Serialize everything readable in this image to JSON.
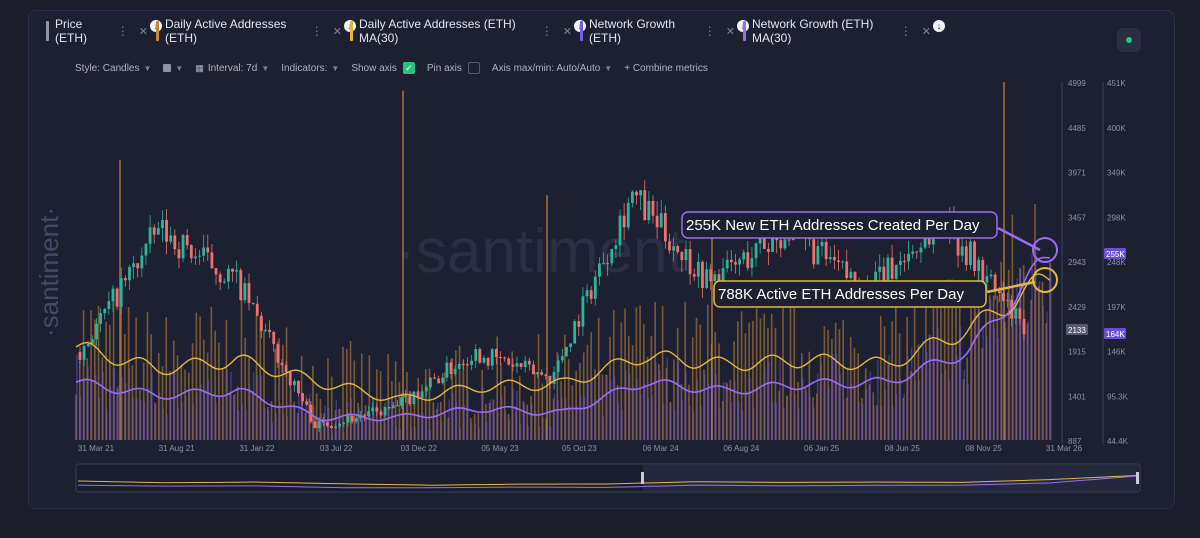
{
  "tabs": [
    {
      "label": "Price (ETH)",
      "color": "#8f93a6"
    },
    {
      "label": "Daily Active Addresses (ETH)",
      "color": "#c7873a"
    },
    {
      "label": "Daily Active Addresses (ETH) MA(30)",
      "color": "#e0b93a"
    },
    {
      "label": "Network Growth (ETH)",
      "color": "#7a5ae8"
    },
    {
      "label": "Network Growth (ETH) MA(30)",
      "color": "#9b6cf3"
    }
  ],
  "toolbar": {
    "style": "Style: Candles",
    "interval": "Interval: 7d",
    "indicators": "Indicators:",
    "show_axis": "Show axis",
    "pin_axis": "Pin axis",
    "axis_max": "Axis max/min: Auto/Auto",
    "combine": "+ Combine metrics"
  },
  "watermark": "·santiment·",
  "watermark_center": "·santiment",
  "chart_data": {
    "type": "line",
    "x_ticks": [
      "31 Mar 21",
      "31 Aug 21",
      "31 Jan 22",
      "03 Jul 22",
      "03 Dec 22",
      "05 May 23",
      "05 Oct 23",
      "06 Mar 24",
      "06 Aug 24",
      "06 Jan 25",
      "08 Jun 25",
      "08 Nov 25",
      "31 Mar 26"
    ],
    "y_left_ticks": [
      "4999",
      "4485",
      "3971",
      "3457",
      "2943",
      "2429",
      "1915",
      "1401",
      "887"
    ],
    "y_right_ticks": [
      "451K",
      "400K",
      "349K",
      "298K",
      "248K",
      "197K",
      "146K",
      "95.3K",
      "44.4K"
    ],
    "price_label": "2133",
    "growth_label": "255K",
    "active_label": "164K",
    "series": [
      {
        "name": "Price (ETH)",
        "x": [
          "31 Mar 21",
          "31 Aug 21",
          "31 Jan 22",
          "03 Jul 22",
          "03 Dec 22",
          "05 May 23",
          "05 Oct 23",
          "06 Mar 24",
          "06 Aug 24",
          "06 Jan 25",
          "08 Jun 25",
          "08 Nov 25",
          "31 Mar 26"
        ],
        "values": [
          1900,
          3300,
          2700,
          1050,
          1250,
          1900,
          1600,
          3700,
          2700,
          3300,
          2600,
          3400,
          2133
        ]
      },
      {
        "name": "Daily Active Addresses (ETH) MA(30)",
        "x": [
          "31 Mar 21",
          "31 Aug 21",
          "31 Jan 22",
          "03 Jul 22",
          "03 Dec 22",
          "05 May 23",
          "05 Oct 23",
          "06 Mar 24",
          "06 Aug 24",
          "06 Jan 25",
          "08 Jun 25",
          "08 Nov 25",
          "31 Mar 26"
        ],
        "values": [
          150000,
          125000,
          135000,
          110000,
          90000,
          105000,
          108000,
          140000,
          130000,
          135000,
          130000,
          170000,
          230000
        ]
      },
      {
        "name": "Network Growth (ETH) MA(30)",
        "x": [
          "31 Mar 21",
          "31 Aug 21",
          "31 Jan 22",
          "03 Jul 22",
          "03 Dec 22",
          "05 May 23",
          "05 Oct 23",
          "06 Mar 24",
          "06 Aug 24",
          "06 Jan 25",
          "08 Jun 25",
          "08 Nov 25",
          "31 Mar 26"
        ],
        "values": [
          110000,
          95000,
          100000,
          70000,
          70000,
          80000,
          75000,
          110000,
          100000,
          108000,
          110000,
          145000,
          255000
        ]
      }
    ],
    "annotations": [
      {
        "text": "255K New ETH Addresses Created Per Day",
        "color": "#9b6cf3"
      },
      {
        "text": "788K Active ETH Addresses Per Day",
        "color": "#e0b93a"
      }
    ],
    "colors": {
      "up": "#2cb39a",
      "down": "#f0706e",
      "active": "#c7873a",
      "active_ma": "#e0b93a",
      "growth": "#7a5ae8",
      "growth_ma": "#9b6cf3"
    }
  }
}
